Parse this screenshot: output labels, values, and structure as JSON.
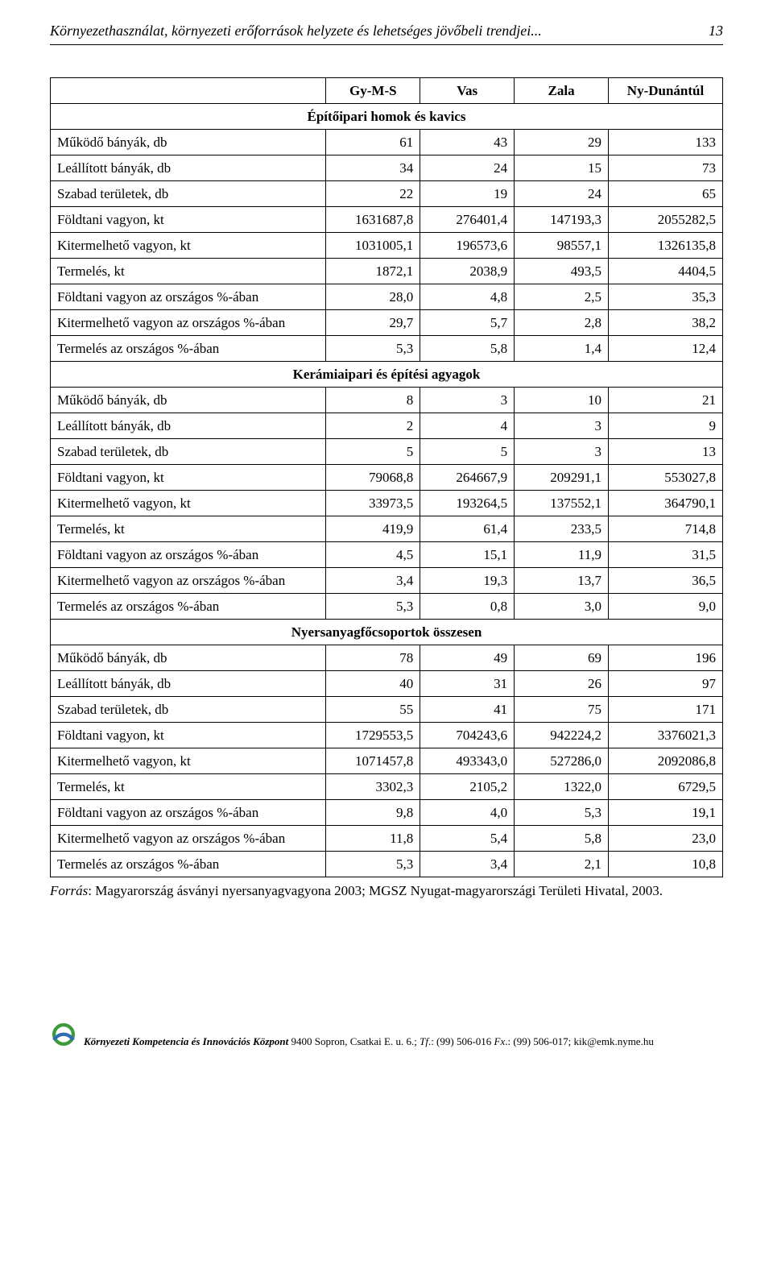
{
  "header": {
    "title": "Környezethasználat, környezeti erőforrások helyzete és lehetséges jövőbeli trendjei...",
    "page_number": "13"
  },
  "table": {
    "columns": [
      "",
      "Gy-M-S",
      "Vas",
      "Zala",
      "Ny-Dunántúl"
    ],
    "sections": [
      {
        "title": "Építőipari homok és kavics",
        "rows": [
          {
            "label": "Működő bányák, db",
            "vals": [
              "61",
              "43",
              "29",
              "133"
            ]
          },
          {
            "label": "Leállított bányák, db",
            "vals": [
              "34",
              "24",
              "15",
              "73"
            ]
          },
          {
            "label": "Szabad területek, db",
            "vals": [
              "22",
              "19",
              "24",
              "65"
            ]
          },
          {
            "label": "Földtani vagyon, kt",
            "vals": [
              "1631687,8",
              "276401,4",
              "147193,3",
              "2055282,5"
            ]
          },
          {
            "label": "Kitermelhető vagyon, kt",
            "vals": [
              "1031005,1",
              "196573,6",
              "98557,1",
              "1326135,8"
            ]
          },
          {
            "label": "Termelés, kt",
            "vals": [
              "1872,1",
              "2038,9",
              "493,5",
              "4404,5"
            ]
          },
          {
            "label": "Földtani vagyon az országos %-ában",
            "vals": [
              "28,0",
              "4,8",
              "2,5",
              "35,3"
            ]
          },
          {
            "label": "Kitermelhető vagyon az országos %-ában",
            "vals": [
              "29,7",
              "5,7",
              "2,8",
              "38,2"
            ]
          },
          {
            "label": "Termelés az országos %-ában",
            "vals": [
              "5,3",
              "5,8",
              "1,4",
              "12,4"
            ]
          }
        ]
      },
      {
        "title": "Kerámiaipari és építési agyagok",
        "rows": [
          {
            "label": "Működő bányák, db",
            "vals": [
              "8",
              "3",
              "10",
              "21"
            ]
          },
          {
            "label": "Leállított bányák, db",
            "vals": [
              "2",
              "4",
              "3",
              "9"
            ]
          },
          {
            "label": "Szabad területek, db",
            "vals": [
              "5",
              "5",
              "3",
              "13"
            ]
          },
          {
            "label": "Földtani vagyon, kt",
            "vals": [
              "79068,8",
              "264667,9",
              "209291,1",
              "553027,8"
            ]
          },
          {
            "label": "Kitermelhető vagyon, kt",
            "vals": [
              "33973,5",
              "193264,5",
              "137552,1",
              "364790,1"
            ]
          },
          {
            "label": "Termelés, kt",
            "vals": [
              "419,9",
              "61,4",
              "233,5",
              "714,8"
            ]
          },
          {
            "label": "Földtani vagyon az országos %-ában",
            "vals": [
              "4,5",
              "15,1",
              "11,9",
              "31,5"
            ]
          },
          {
            "label": "Kitermelhető vagyon az országos %-ában",
            "vals": [
              "3,4",
              "19,3",
              "13,7",
              "36,5"
            ]
          },
          {
            "label": "Termelés az országos %-ában",
            "vals": [
              "5,3",
              "0,8",
              "3,0",
              "9,0"
            ]
          }
        ]
      },
      {
        "title": "Nyersanyagfőcsoportok összesen",
        "rows": [
          {
            "label": "Működő bányák, db",
            "vals": [
              "78",
              "49",
              "69",
              "196"
            ]
          },
          {
            "label": "Leállított bányák, db",
            "vals": [
              "40",
              "31",
              "26",
              "97"
            ]
          },
          {
            "label": "Szabad területek, db",
            "vals": [
              "55",
              "41",
              "75",
              "171"
            ]
          },
          {
            "label": "Földtani vagyon, kt",
            "vals": [
              "1729553,5",
              "704243,6",
              "942224,2",
              "3376021,3"
            ]
          },
          {
            "label": "Kitermelhető vagyon, kt",
            "vals": [
              "1071457,8",
              "493343,0",
              "527286,0",
              "2092086,8"
            ]
          },
          {
            "label": "Termelés, kt",
            "vals": [
              "3302,3",
              "2105,2",
              "1322,0",
              "6729,5"
            ]
          },
          {
            "label": "Földtani vagyon az országos %-ában",
            "vals": [
              "9,8",
              "4,0",
              "5,3",
              "19,1"
            ]
          },
          {
            "label": "Kitermelhető vagyon az országos %-ában",
            "vals": [
              "11,8",
              "5,4",
              "5,8",
              "23,0"
            ]
          },
          {
            "label": "Termelés az országos %-ában",
            "vals": [
              "5,3",
              "3,4",
              "2,1",
              "10,8"
            ]
          }
        ]
      }
    ],
    "column_widths": [
      "41%",
      "14%",
      "14%",
      "14%",
      "17%"
    ]
  },
  "source": {
    "label": "Forrás",
    "text": ": Magyarország ásványi nyersanyagvagyona 2003; MGSZ Nyugat-magyarországi Területi Hivatal, 2003."
  },
  "footer": {
    "org": "Környezeti Kompetencia és Innovációs Központ",
    "addr": " 9400 Sopron, Csatkai E. u. 6.; ",
    "tf_label": "Tf",
    "tf": ".: (99) 506-016 ",
    "fx_label": "Fx",
    "fx": ".: (99) 506-017; kik@emk.nyme.hu",
    "logo_colors": {
      "ring": "#3c9a3c",
      "arc": "#2e6db3"
    }
  }
}
